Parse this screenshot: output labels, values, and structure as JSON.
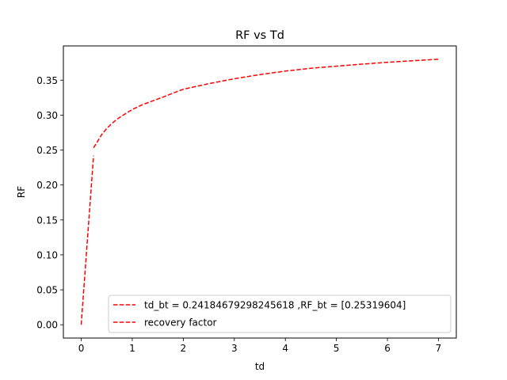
{
  "chart_data": {
    "type": "line",
    "title": "RF vs Td",
    "xlabel": "td",
    "ylabel": "RF",
    "xlim": [
      -0.35,
      7.35
    ],
    "ylim": [
      -0.019,
      0.399
    ],
    "x_ticks": [
      0,
      1,
      2,
      3,
      4,
      5,
      6,
      7
    ],
    "x_tick_labels": [
      "0",
      "1",
      "2",
      "3",
      "4",
      "5",
      "6",
      "7"
    ],
    "y_ticks": [
      0.0,
      0.05,
      0.1,
      0.15,
      0.2,
      0.25,
      0.3,
      0.35
    ],
    "y_tick_labels": [
      "0.00",
      "0.05",
      "0.10",
      "0.15",
      "0.20",
      "0.25",
      "0.30",
      "0.35"
    ],
    "grid": false,
    "legend_position": "lower-right",
    "series": [
      {
        "name": "td_bt = 0.24184679298245618 ,RF_bt = [0.25319604]",
        "color": "#ff0000",
        "style": "dashed",
        "x": [
          0.0,
          0.24184679298245618
        ],
        "y": [
          0.0,
          0.24184679298245618
        ]
      },
      {
        "name": "recovery factor",
        "color": "#ff0000",
        "style": "dashed",
        "x": [
          0.2418,
          0.3,
          0.4,
          0.5,
          0.6,
          0.7,
          0.8,
          1.0,
          1.2,
          1.5,
          2.0,
          2.5,
          3.0,
          3.5,
          4.0,
          4.5,
          5.0,
          5.5,
          6.0,
          6.5,
          7.0
        ],
        "y": [
          0.2532,
          0.26,
          0.272,
          0.281,
          0.288,
          0.294,
          0.299,
          0.308,
          0.315,
          0.323,
          0.337,
          0.345,
          0.352,
          0.358,
          0.363,
          0.367,
          0.37,
          0.373,
          0.3755,
          0.3778,
          0.38
        ]
      }
    ]
  }
}
